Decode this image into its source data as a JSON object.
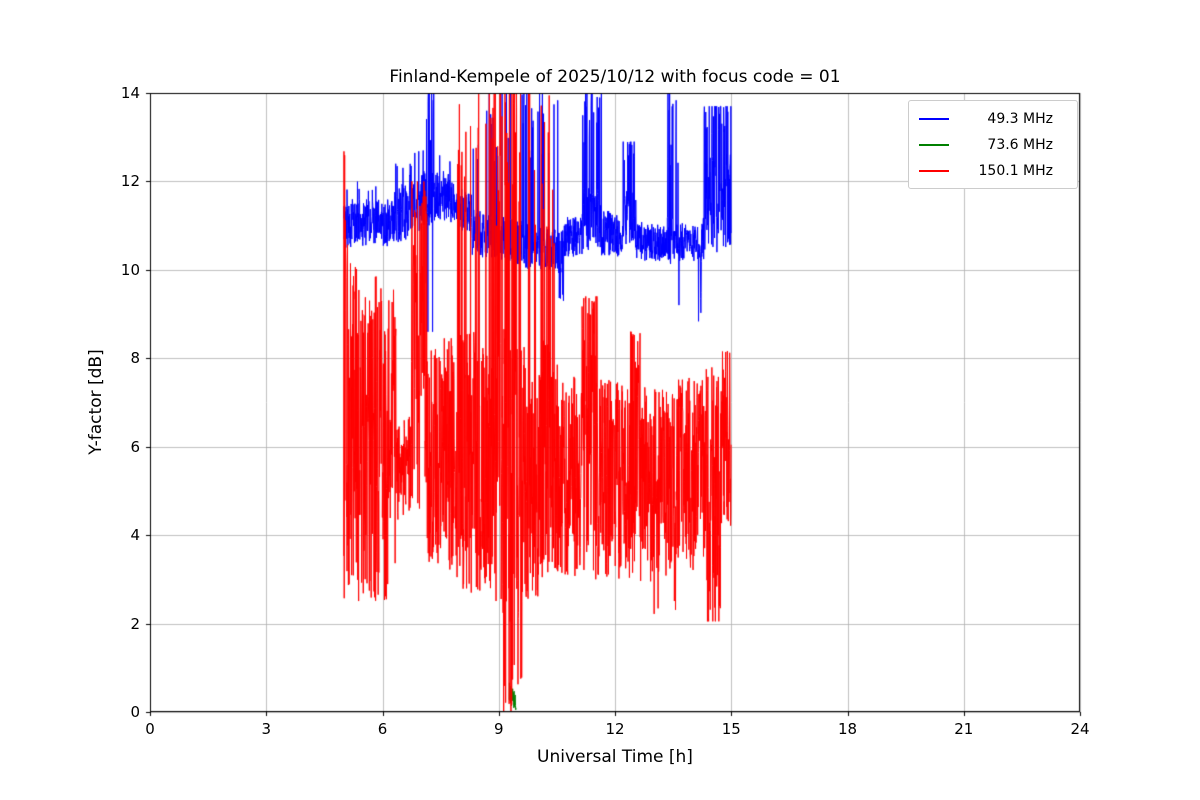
{
  "chart_data": {
    "type": "line",
    "title": "Finland-Kempele of 2025/10/12 with focus code = 01",
    "xlabel": "Universal Time [h]",
    "ylabel": "Y-factor [dB]",
    "xlim": [
      0,
      24
    ],
    "ylim": [
      0,
      14
    ],
    "xticks": [
      0,
      3,
      6,
      9,
      12,
      15,
      18,
      21,
      24
    ],
    "yticks": [
      0,
      2,
      4,
      6,
      8,
      10,
      12,
      14
    ],
    "grid": true,
    "grid_color": "#b0b0b0",
    "background": "#ffffff",
    "legend": {
      "position": "upper right"
    },
    "sampling": {
      "t_start": 5.0,
      "t_end": 15.0,
      "dt": 0.006,
      "seed": 42
    },
    "segment_format": [
      "t0",
      "t1",
      "lo0",
      "hi0",
      "lo1",
      "hi1",
      "spike_top",
      "spike_prob",
      "dip_bottom",
      "dip_prob"
    ],
    "series": [
      {
        "name": "49.3 MHz",
        "color": "#0000ff",
        "segments": [
          [
            5.0,
            6.3,
            10.5,
            11.6,
            10.5,
            11.6,
            12.0,
            0.03,
            null,
            null
          ],
          [
            6.3,
            6.75,
            10.6,
            12.0,
            10.7,
            11.9,
            12.4,
            0.08,
            null,
            null
          ],
          [
            6.75,
            7.1,
            10.8,
            11.9,
            10.9,
            12.3,
            12.7,
            0.08,
            null,
            null
          ],
          [
            7.1,
            7.35,
            10.9,
            12.2,
            11.0,
            12.2,
            14,
            0.22,
            8.6,
            0.05
          ],
          [
            7.35,
            7.75,
            11.1,
            12.3,
            11.1,
            12.2,
            12.6,
            0.05,
            null,
            null
          ],
          [
            7.75,
            8.3,
            11.0,
            12.0,
            10.8,
            11.7,
            null,
            null,
            null,
            null
          ],
          [
            8.3,
            9.7,
            10.3,
            11.4,
            10.1,
            11.1,
            14,
            0.13,
            null,
            null
          ],
          [
            9.7,
            10.55,
            10.0,
            11.1,
            9.95,
            10.9,
            14,
            0.11,
            null,
            null
          ],
          [
            10.55,
            10.68,
            9.9,
            10.9,
            10.0,
            10.9,
            null,
            null,
            9.3,
            0.3
          ],
          [
            10.68,
            11.15,
            10.3,
            11.2,
            10.3,
            11.2,
            null,
            null,
            null,
            null
          ],
          [
            11.15,
            11.65,
            10.4,
            12.0,
            10.5,
            11.8,
            14,
            0.26,
            null,
            null
          ],
          [
            11.65,
            12.2,
            10.3,
            11.4,
            10.3,
            11.2,
            null,
            null,
            null,
            null
          ],
          [
            12.2,
            12.55,
            10.5,
            11.9,
            10.5,
            11.7,
            12.9,
            0.18,
            null,
            null
          ],
          [
            12.55,
            13.35,
            10.2,
            11.1,
            10.2,
            11.0,
            null,
            null,
            null,
            null
          ],
          [
            13.35,
            13.7,
            10.1,
            11.2,
            10.2,
            11.1,
            14,
            0.2,
            9.2,
            0.06
          ],
          [
            13.7,
            14.15,
            10.2,
            11.1,
            10.2,
            11.0,
            null,
            null,
            null,
            null
          ],
          [
            14.15,
            14.3,
            10.1,
            11.0,
            10.2,
            11.2,
            null,
            null,
            8.7,
            0.22
          ],
          [
            14.3,
            15.0,
            10.3,
            12.5,
            10.4,
            12.8,
            13.7,
            0.28,
            null,
            null
          ]
        ]
      },
      {
        "name": "73.6 MHz",
        "color": "#008000",
        "segments": [
          [
            9.27,
            9.45,
            0.0,
            0.7,
            0.0,
            0.5,
            null,
            null,
            null,
            null
          ]
        ]
      },
      {
        "name": "150.1 MHz",
        "color": "#ff0000",
        "segments": [
          [
            5.0,
            5.12,
            2.4,
            14,
            2.4,
            10.5,
            null,
            null,
            null,
            null
          ],
          [
            5.12,
            6.35,
            2.4,
            10.2,
            2.5,
            9.6,
            null,
            null,
            null,
            null
          ],
          [
            6.35,
            6.75,
            4.3,
            6.4,
            4.6,
            6.8,
            null,
            null,
            null,
            null
          ],
          [
            6.75,
            7.15,
            4.4,
            10.5,
            4.1,
            11.5,
            12.0,
            0.25,
            null,
            null
          ],
          [
            7.15,
            7.9,
            3.3,
            8.3,
            3.0,
            8.6,
            null,
            null,
            null,
            null
          ],
          [
            7.9,
            8.2,
            2.8,
            8.8,
            2.7,
            8.6,
            14,
            0.12,
            null,
            null
          ],
          [
            8.2,
            8.75,
            2.6,
            8.6,
            2.6,
            8.6,
            14,
            0.06,
            null,
            null
          ],
          [
            8.75,
            9.1,
            2.3,
            8.8,
            2.2,
            9.0,
            14,
            0.3,
            null,
            null
          ],
          [
            9.1,
            9.6,
            1.8,
            8.8,
            2.0,
            8.6,
            14,
            0.33,
            0.0,
            0.2
          ],
          [
            9.6,
            10.05,
            2.5,
            8.6,
            2.6,
            8.4,
            14,
            0.05,
            null,
            null
          ],
          [
            10.05,
            10.45,
            2.9,
            8.5,
            3.0,
            8.2,
            14,
            0.15,
            null,
            null
          ],
          [
            10.45,
            11.15,
            3.0,
            7.9,
            3.1,
            7.7,
            null,
            null,
            null,
            null
          ],
          [
            11.15,
            11.55,
            3.0,
            8.8,
            3.0,
            8.6,
            9.4,
            0.3,
            null,
            null
          ],
          [
            11.55,
            12.4,
            3.0,
            7.6,
            3.0,
            7.4,
            null,
            null,
            null,
            null
          ],
          [
            12.4,
            12.65,
            3.0,
            8.3,
            3.0,
            8.0,
            8.6,
            0.2,
            null,
            null
          ],
          [
            12.65,
            13.6,
            2.9,
            7.4,
            3.0,
            7.3,
            null,
            null,
            2.2,
            0.03
          ],
          [
            13.6,
            14.35,
            3.2,
            7.6,
            3.2,
            7.5,
            null,
            null,
            null,
            null
          ],
          [
            14.35,
            14.75,
            2.6,
            7.8,
            2.8,
            8.0,
            null,
            null,
            2.05,
            0.12
          ],
          [
            14.75,
            15.0,
            4.0,
            8.2,
            4.2,
            8.3,
            null,
            null,
            null,
            null
          ]
        ]
      }
    ]
  }
}
